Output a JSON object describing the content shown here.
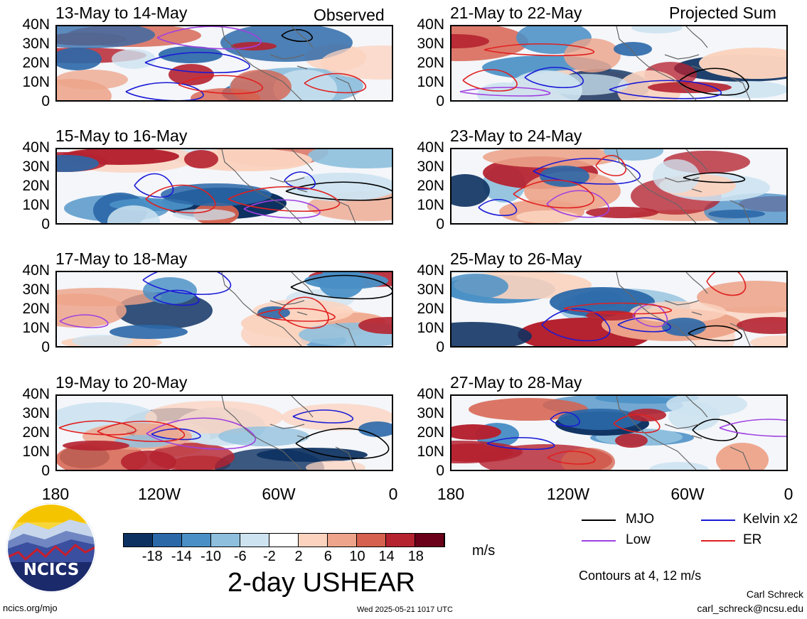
{
  "columns": {
    "left_label": "Observed",
    "right_label": "Projected Sum"
  },
  "panels": [
    {
      "title": "13-May to 14-May",
      "column": "left"
    },
    {
      "title": "21-May to 22-May",
      "column": "right"
    },
    {
      "title": "15-May to 16-May",
      "column": "left"
    },
    {
      "title": "23-May to 24-May",
      "column": "right"
    },
    {
      "title": "17-May to 18-May",
      "column": "left"
    },
    {
      "title": "25-May to 26-May",
      "column": "right"
    },
    {
      "title": "19-May to 20-May",
      "column": "left"
    },
    {
      "title": "27-May to 28-May",
      "column": "right"
    }
  ],
  "axes": {
    "y_ticks": [
      "40N",
      "30N",
      "20N",
      "10N",
      "0"
    ],
    "x_ticks": [
      "180",
      "120W",
      "60W",
      "0"
    ]
  },
  "colorbar": {
    "tick_labels": [
      "-18",
      "-14",
      "-10",
      "-6",
      "-2",
      "2",
      "6",
      "10",
      "14",
      "18"
    ],
    "colors": [
      "#0d3161",
      "#2b68a8",
      "#4a90c6",
      "#8ebfdd",
      "#cde3f0",
      "#ffffff",
      "#fbd3bf",
      "#eda48a",
      "#d6614e",
      "#b52230",
      "#6a0019"
    ],
    "unit": "m/s"
  },
  "title": "2-day USHEAR",
  "legend": {
    "items": [
      {
        "label": "MJO",
        "color": "#000000"
      },
      {
        "label": "Kelvin x2",
        "color": "#1a1ad6"
      },
      {
        "label": "Low",
        "color": "#a040e0"
      },
      {
        "label": "ER",
        "color": "#e02020"
      }
    ],
    "note": "Contours at 4, 12 m/s"
  },
  "logo": {
    "text": "NCICS"
  },
  "footer": {
    "url": "ncics.org/mjo",
    "timestamp": "Wed 2025-05-21 1017 UTC",
    "author": "Carl Schreck",
    "email": "carl_schreck@ncsu.edu"
  }
}
